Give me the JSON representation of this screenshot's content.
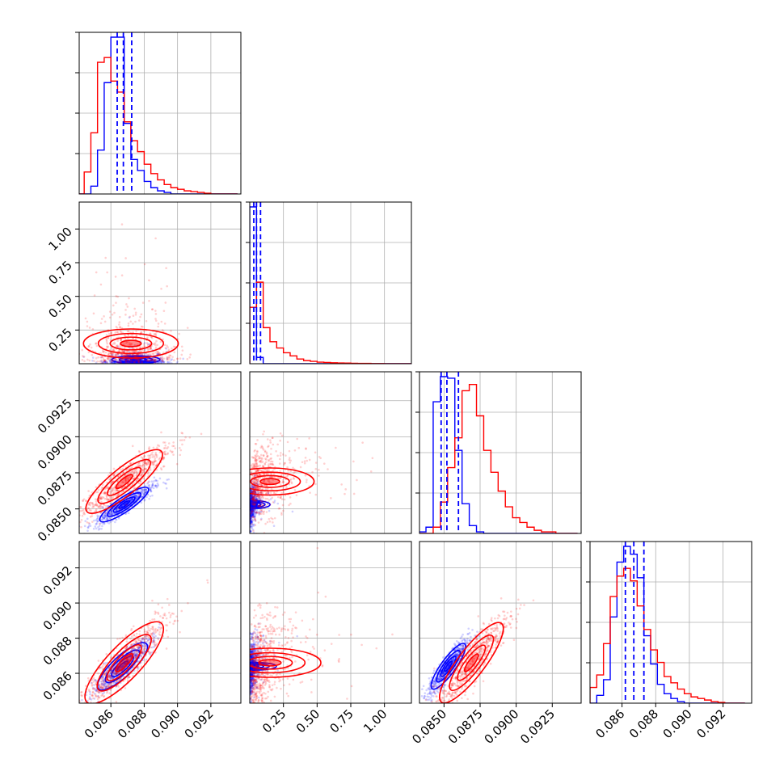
{
  "figure": {
    "layout": "corner plot",
    "n_params": 4,
    "grid": true
  },
  "colors": {
    "series_a": "#0000ff",
    "series_b": "#ff0000",
    "frame": "#000000",
    "grid": "#b0b0b0"
  },
  "chart_data": [
    {
      "type": "histogram",
      "panel": "diag-0",
      "x": [
        0.0842,
        0.0846,
        0.085,
        0.0854,
        0.0858,
        0.0862,
        0.0866,
        0.087,
        0.0874,
        0.0878,
        0.0882,
        0.0886,
        0.089,
        0.0894,
        0.0898,
        0.0902,
        0.0906,
        0.091,
        0.0914,
        0.0918,
        0.0922,
        0.0926,
        0.093,
        0.0934
      ],
      "xlim": [
        0.0841,
        0.0938
      ],
      "xticks": [
        "0.086",
        "0.088",
        "0.090",
        "0.092"
      ],
      "xtick_values": [
        0.086,
        0.088,
        0.09,
        0.092
      ],
      "series": [
        {
          "color": "blue",
          "values": [
            0,
            0,
            0.05,
            0.28,
            0.71,
            1.0,
            1.0,
            0.45,
            0.22,
            0.15,
            0.08,
            0.04,
            0.02,
            0.01,
            0,
            0,
            0,
            0,
            0,
            0,
            0,
            0,
            0,
            0
          ]
        },
        {
          "color": "red",
          "values": [
            0,
            0.14,
            0.39,
            0.84,
            0.87,
            0.72,
            0.65,
            0.46,
            0.34,
            0.27,
            0.19,
            0.13,
            0.09,
            0.06,
            0.04,
            0.03,
            0.02,
            0.015,
            0.01,
            0.005,
            0,
            0,
            0,
            0
          ]
        }
      ],
      "quantile_lines": [
        0.08638,
        0.08675,
        0.08725
      ]
    },
    {
      "type": "scatter+contour",
      "panel": "row1-col0",
      "xlim": [
        0.0841,
        0.0938
      ],
      "ylim": [
        0.0,
        1.2
      ],
      "yticks": [
        "0.25",
        "0.50",
        "0.75",
        "1.00"
      ],
      "ytick_values": [
        0.25,
        0.5,
        0.75,
        1.0
      ],
      "series": [
        {
          "color": "blue",
          "x_center": 0.0875,
          "y_center": 0.03,
          "x_spread": 0.0009,
          "y_spread": 0.01
        },
        {
          "color": "red",
          "x_center": 0.0872,
          "y_center": 0.15,
          "x_spread": 0.0013,
          "y_spread": 0.15
        }
      ]
    },
    {
      "type": "histogram",
      "panel": "diag-1",
      "x": [
        0.025,
        0.075,
        0.125,
        0.175,
        0.225,
        0.275,
        0.325,
        0.375,
        0.425,
        0.475,
        0.525,
        0.575,
        0.625,
        0.675,
        0.725,
        0.775,
        0.825,
        0.875,
        0.925,
        0.975,
        1.025,
        1.075,
        1.125,
        1.175
      ],
      "xlim": [
        0.0,
        1.2
      ],
      "xticks": [
        "0.25",
        "0.50",
        "0.75",
        "1.00"
      ],
      "xtick_values": [
        0.25,
        0.5,
        0.75,
        1.0
      ],
      "series": [
        {
          "color": "blue",
          "values": [
            1.0,
            0.04,
            0,
            0,
            0,
            0,
            0,
            0,
            0,
            0,
            0,
            0,
            0,
            0,
            0,
            0,
            0,
            0,
            0,
            0,
            0,
            0,
            0,
            0
          ]
        },
        {
          "color": "red",
          "values": [
            0.36,
            0.52,
            0.23,
            0.14,
            0.1,
            0.07,
            0.05,
            0.03,
            0.02,
            0.015,
            0.01,
            0.008,
            0.006,
            0.005,
            0.004,
            0.003,
            0.002,
            0.002,
            0.001,
            0.001,
            0,
            0,
            0,
            0
          ]
        }
      ],
      "quantile_lines": [
        0.03,
        0.05,
        0.08
      ]
    },
    {
      "type": "scatter+contour",
      "panel": "row2-col0",
      "xlim": [
        0.0841,
        0.0938
      ],
      "ylim": [
        0.0833,
        0.0945
      ],
      "yticks": [
        "0.0850",
        "0.0875",
        "0.0900",
        "0.0925"
      ],
      "ytick_values": [
        0.085,
        0.0875,
        0.09,
        0.0925
      ],
      "series": [
        {
          "color": "blue",
          "x_center": 0.0868,
          "y_center": 0.0853,
          "x_spread": 0.0009,
          "y_spread": 0.0007
        },
        {
          "color": "red",
          "x_center": 0.0868,
          "y_center": 0.0869,
          "x_spread": 0.0014,
          "y_spread": 0.0013
        }
      ]
    },
    {
      "type": "scatter+contour",
      "panel": "row2-col1",
      "xlim": [
        0.0,
        1.2
      ],
      "ylim": [
        0.0833,
        0.0945
      ],
      "series": [
        {
          "color": "blue",
          "x_center": 0.03,
          "y_center": 0.0853,
          "x_spread": 0.01,
          "y_spread": 0.0007
        },
        {
          "color": "red",
          "x_center": 0.15,
          "y_center": 0.0869,
          "x_spread": 0.15,
          "y_spread": 0.0013
        }
      ]
    },
    {
      "type": "histogram",
      "panel": "diag-2",
      "x": [
        0.0835,
        0.084,
        0.0845,
        0.085,
        0.0855,
        0.086,
        0.0865,
        0.087,
        0.0875,
        0.088,
        0.0885,
        0.089,
        0.0895,
        0.09,
        0.0905,
        0.091,
        0.0915,
        0.092,
        0.0925,
        0.093,
        0.0935,
        0.094
      ],
      "xlim": [
        0.0833,
        0.0945
      ],
      "xticks": [
        "0.0850",
        "0.0875",
        "0.0900",
        "0.0925"
      ],
      "xtick_values": [
        0.085,
        0.0875,
        0.09,
        0.0925
      ],
      "series": [
        {
          "color": "blue",
          "values": [
            0.01,
            0.04,
            0.84,
            1.0,
            0.99,
            0.53,
            0.19,
            0.05,
            0.01,
            0,
            0,
            0,
            0,
            0,
            0,
            0,
            0,
            0,
            0,
            0,
            0,
            0
          ]
        },
        {
          "color": "red",
          "values": [
            0,
            0,
            0.04,
            0.2,
            0.42,
            0.61,
            0.91,
            0.95,
            0.75,
            0.53,
            0.39,
            0.27,
            0.17,
            0.1,
            0.07,
            0.04,
            0.02,
            0.01,
            0.01,
            0,
            0,
            0
          ]
        }
      ],
      "quantile_lines": [
        0.0848,
        0.0852,
        0.086
      ]
    },
    {
      "type": "scatter+contour",
      "panel": "row3-col0",
      "xlim": [
        0.0841,
        0.0938
      ],
      "ylim": [
        0.0843,
        0.0935
      ],
      "yticks": [
        "0.086",
        "0.088",
        "0.090",
        "0.092"
      ],
      "ytick_values": [
        0.086,
        0.088,
        0.09,
        0.092
      ],
      "series": [
        {
          "color": "blue",
          "x_center": 0.0867,
          "y_center": 0.0864,
          "x_spread": 0.0009,
          "y_spread": 0.0008
        },
        {
          "color": "red",
          "x_center": 0.0868,
          "y_center": 0.0866,
          "x_spread": 0.0014,
          "y_spread": 0.0014
        }
      ]
    },
    {
      "type": "scatter+contour",
      "panel": "row3-col1",
      "xlim": [
        0.0,
        1.2
      ],
      "ylim": [
        0.0843,
        0.0935
      ],
      "series": [
        {
          "color": "blue",
          "x_center": 0.03,
          "y_center": 0.0864,
          "x_spread": 0.01,
          "y_spread": 0.0008
        },
        {
          "color": "red",
          "x_center": 0.15,
          "y_center": 0.0866,
          "x_spread": 0.15,
          "y_spread": 0.0014
        }
      ]
    },
    {
      "type": "scatter+contour",
      "panel": "row3-col2",
      "xlim": [
        0.0833,
        0.0945
      ],
      "ylim": [
        0.0843,
        0.0935
      ],
      "series": [
        {
          "color": "blue",
          "x_center": 0.0853,
          "y_center": 0.0864,
          "x_spread": 0.0007,
          "y_spread": 0.0008
        },
        {
          "color": "red",
          "x_center": 0.0869,
          "y_center": 0.0866,
          "x_spread": 0.0013,
          "y_spread": 0.0014
        }
      ]
    },
    {
      "type": "histogram",
      "panel": "diag-3",
      "x": [
        0.0843,
        0.0847,
        0.0851,
        0.0855,
        0.0859,
        0.0863,
        0.0867,
        0.0871,
        0.0875,
        0.0879,
        0.0883,
        0.0887,
        0.0891,
        0.0895,
        0.0899,
        0.0903,
        0.0907,
        0.0911,
        0.0915,
        0.0919,
        0.0923,
        0.0927,
        0.0931
      ],
      "xlim": [
        0.0841,
        0.0937
      ],
      "xticks": [
        "0.086",
        "0.088",
        "0.090",
        "0.092"
      ],
      "xtick_values": [
        0.086,
        0.088,
        0.09,
        0.092
      ],
      "series": [
        {
          "color": "blue",
          "values": [
            0,
            0.05,
            0.15,
            0.55,
            0.9,
            1.0,
            0.95,
            0.8,
            0.43,
            0.25,
            0.12,
            0.06,
            0.03,
            0.01,
            0,
            0,
            0,
            0,
            0,
            0,
            0,
            0,
            0
          ]
        },
        {
          "color": "red",
          "values": [
            0.1,
            0.18,
            0.38,
            0.68,
            0.81,
            0.86,
            0.78,
            0.62,
            0.47,
            0.34,
            0.26,
            0.17,
            0.13,
            0.09,
            0.06,
            0.04,
            0.03,
            0.02,
            0.01,
            0.005,
            0,
            0,
            0
          ]
        }
      ],
      "quantile_lines": [
        0.0862,
        0.0867,
        0.0873
      ]
    }
  ]
}
